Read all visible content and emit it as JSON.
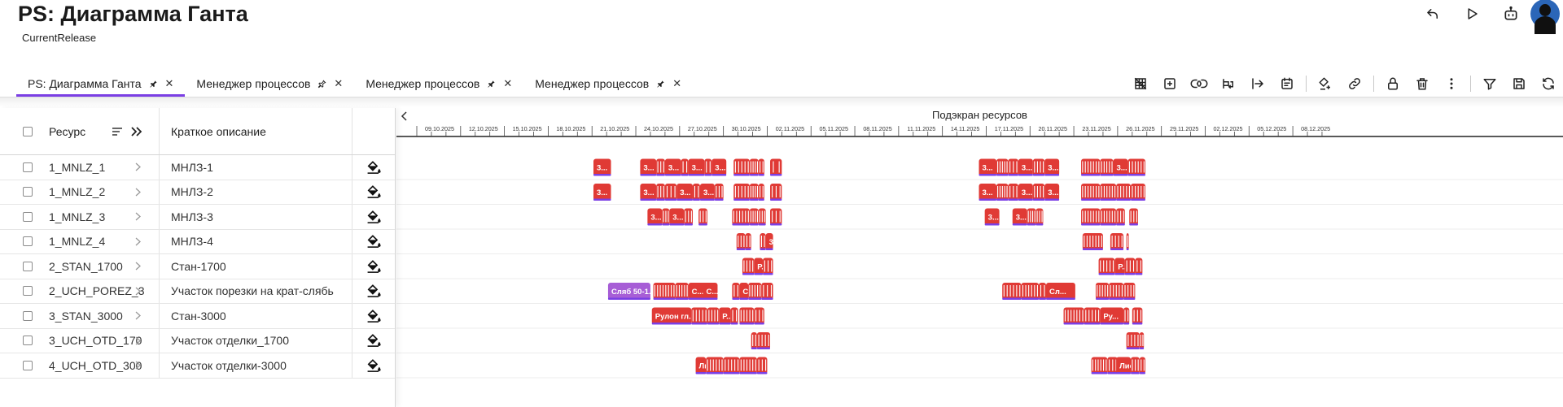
{
  "app": {
    "title": "PS: Диаграмма Ганта",
    "subtitle": "CurrentRelease"
  },
  "top_actions": [
    {
      "name": "undo-icon"
    },
    {
      "name": "play-icon"
    },
    {
      "name": "robot-icon"
    },
    {
      "name": "user-avatar-icon"
    }
  ],
  "tabs": [
    {
      "label": "PS: Диаграмма Ганта",
      "active": true,
      "pin": "pin-filled-icon"
    },
    {
      "label": "Менеджер процессов",
      "active": false,
      "pin": "pin-outline-icon"
    },
    {
      "label": "Менеджер процессов",
      "active": false,
      "pin": "pin-filled-icon"
    },
    {
      "label": "Менеджер процессов",
      "active": false,
      "pin": "pin-filled-icon"
    }
  ],
  "toolbar": [
    "grid-off-icon",
    "add-box-icon",
    "link-code-icon",
    "wrap-text-icon",
    "arrow-to-right-icon",
    "calendar-list-icon",
    "|",
    "fill-plus-icon",
    "link-icon",
    "|",
    "lock-icon",
    "trash-icon",
    "more-vertical-icon",
    "|",
    "filter-icon",
    "save-icon",
    "refresh-icon"
  ],
  "grid": {
    "headers": {
      "resource": "Ресурс",
      "description": "Краткое описание"
    },
    "rows": [
      {
        "code": "1_MNLZ_1",
        "desc": "МНЛЗ-1"
      },
      {
        "code": "1_MNLZ_2",
        "desc": "МНЛЗ-2"
      },
      {
        "code": "1_MNLZ_3",
        "desc": "МНЛЗ-3"
      },
      {
        "code": "1_MNLZ_4",
        "desc": "МНЛЗ-4"
      },
      {
        "code": "2_STAN_1700",
        "desc": "Стан-1700"
      },
      {
        "code": "2_UCH_POREZ_3",
        "desc": "Участок порезки на крат-слябь"
      },
      {
        "code": "3_STAN_3000",
        "desc": "Стан-3000"
      },
      {
        "code": "3_UCH_OTD_170",
        "desc": "Участок отделки_1700"
      },
      {
        "code": "4_UCH_OTD_300",
        "desc": "Участок отделки-3000"
      }
    ]
  },
  "gantt": {
    "title": "Подэкран ресурсов",
    "start_date": "09.10.2025",
    "days_visible": 62,
    "dates": [
      "09.10.2025",
      "12.10.2025",
      "15.10.2025",
      "18.10.2025",
      "21.10.2025",
      "24.10.2025",
      "27.10.2025",
      "30.10.2025",
      "02.11.2025",
      "05.11.2025",
      "08.11.2025",
      "11.11.2025",
      "14.11.2025",
      "17.11.2025",
      "20.11.2025",
      "23.11.2025",
      "26.11.2025",
      "29.11.2025",
      "02.12.2025",
      "05.12.2025",
      "08.12.2025"
    ],
    "colors": {
      "task": "#e03a35",
      "task_border": "#7b3fe4",
      "special": "#a75ed6",
      "divider": "#ececec"
    },
    "rows": [
      {
        "bars": [
          {
            "start": 12.1,
            "dur": 1.2,
            "label": "3..."
          },
          {
            "start": 15.3,
            "dur": 1.1,
            "label": "3..."
          },
          {
            "start": 16.4,
            "dur": 0.6,
            "pack": 3
          },
          {
            "start": 17.0,
            "dur": 1.1,
            "label": "3..."
          },
          {
            "start": 18.1,
            "dur": 0.5,
            "pack": 2
          },
          {
            "start": 18.6,
            "dur": 1.1,
            "label": "3..."
          },
          {
            "start": 19.7,
            "dur": 0.5,
            "pack": 2
          },
          {
            "start": 20.2,
            "dur": 1.0,
            "label": "3..."
          },
          {
            "start": 21.7,
            "dur": 1.1,
            "pack": 5
          },
          {
            "start": 22.8,
            "dur": 0.6,
            "pack": 4
          },
          {
            "start": 23.4,
            "dur": 0.4,
            "pack": 2
          },
          {
            "start": 24.2,
            "dur": 0.8,
            "pack": 2
          },
          {
            "start": 38.5,
            "dur": 1.2,
            "label": "3..."
          },
          {
            "start": 39.7,
            "dur": 0.8,
            "pack": 5
          },
          {
            "start": 40.5,
            "dur": 0.7,
            "pack": 3
          },
          {
            "start": 41.2,
            "dur": 1.0,
            "label": "3..."
          },
          {
            "start": 42.2,
            "dur": 0.8,
            "pack": 4
          },
          {
            "start": 43.0,
            "dur": 1.0,
            "label": "3..."
          },
          {
            "start": 45.5,
            "dur": 1.3,
            "pack": 7
          },
          {
            "start": 46.8,
            "dur": 0.9,
            "pack": 5
          },
          {
            "start": 47.7,
            "dur": 1.0,
            "label": "3..."
          },
          {
            "start": 48.7,
            "dur": 1.2,
            "pack": 6
          }
        ]
      },
      {
        "bars": [
          {
            "start": 12.1,
            "dur": 1.2,
            "label": "3..."
          },
          {
            "start": 15.3,
            "dur": 1.1,
            "label": "3..."
          },
          {
            "start": 16.4,
            "dur": 0.6,
            "pack": 3
          },
          {
            "start": 17.0,
            "dur": 0.8,
            "pack": 3
          },
          {
            "start": 17.8,
            "dur": 1.1,
            "label": "3..."
          },
          {
            "start": 18.9,
            "dur": 0.5,
            "pack": 2
          },
          {
            "start": 19.4,
            "dur": 1.0,
            "label": "3..."
          },
          {
            "start": 20.4,
            "dur": 0.6,
            "pack": 3
          },
          {
            "start": 21.7,
            "dur": 1.1,
            "pack": 5
          },
          {
            "start": 22.8,
            "dur": 0.6,
            "pack": 4
          },
          {
            "start": 23.4,
            "dur": 0.4,
            "pack": 2
          },
          {
            "start": 24.2,
            "dur": 0.8,
            "pack": 3
          },
          {
            "start": 38.5,
            "dur": 1.2,
            "label": "3..."
          },
          {
            "start": 39.7,
            "dur": 0.8,
            "pack": 5
          },
          {
            "start": 40.5,
            "dur": 0.7,
            "pack": 3
          },
          {
            "start": 41.2,
            "dur": 1.0,
            "label": "3..."
          },
          {
            "start": 42.2,
            "dur": 0.8,
            "pack": 4
          },
          {
            "start": 43.0,
            "dur": 1.0,
            "label": "3..."
          },
          {
            "start": 45.5,
            "dur": 1.3,
            "pack": 7
          },
          {
            "start": 46.8,
            "dur": 1.1,
            "pack": 6
          },
          {
            "start": 47.9,
            "dur": 1.0,
            "pack": 5
          },
          {
            "start": 48.9,
            "dur": 1.0,
            "pack": 5
          }
        ]
      },
      {
        "bars": [
          {
            "start": 15.8,
            "dur": 1.0,
            "label": "3..."
          },
          {
            "start": 16.8,
            "dur": 0.5,
            "pack": 3
          },
          {
            "start": 17.3,
            "dur": 1.0,
            "label": "3..."
          },
          {
            "start": 18.3,
            "dur": 0.6,
            "pack": 3
          },
          {
            "start": 19.3,
            "dur": 0.6,
            "pack": 3
          },
          {
            "start": 21.6,
            "dur": 1.2,
            "pack": 6
          },
          {
            "start": 22.8,
            "dur": 0.6,
            "pack": 4
          },
          {
            "start": 23.4,
            "dur": 0.5,
            "pack": 3
          },
          {
            "start": 24.2,
            "dur": 0.8,
            "pack": 3
          },
          {
            "start": 38.9,
            "dur": 1.0,
            "label": "3..."
          },
          {
            "start": 40.8,
            "dur": 1.0,
            "label": "3..."
          },
          {
            "start": 41.8,
            "dur": 0.6,
            "pack": 4
          },
          {
            "start": 42.4,
            "dur": 0.5,
            "pack": 3
          },
          {
            "start": 45.5,
            "dur": 1.3,
            "pack": 7
          },
          {
            "start": 46.8,
            "dur": 1.1,
            "pack": 6
          },
          {
            "start": 47.9,
            "dur": 0.6,
            "pack": 3
          },
          {
            "start": 48.8,
            "dur": 0.6,
            "pack": 3
          }
        ]
      },
      {
        "bars": [
          {
            "start": 21.9,
            "dur": 0.6,
            "pack": 3
          },
          {
            "start": 22.5,
            "dur": 0.4,
            "pack": 2
          },
          {
            "start": 23.5,
            "dur": 0.4,
            "pack": 2
          },
          {
            "start": 23.9,
            "dur": 0.5,
            "label": "3..."
          },
          {
            "start": 45.6,
            "dur": 1.4,
            "pack": 7
          },
          {
            "start": 47.5,
            "dur": 0.9,
            "pack": 4
          },
          {
            "start": 48.6,
            "dur": 0.1,
            "pack": 1
          }
        ]
      },
      {
        "bars": [
          {
            "start": 22.3,
            "dur": 0.8,
            "pack": 4
          },
          {
            "start": 23.1,
            "dur": 0.6,
            "label": "Р..."
          },
          {
            "start": 23.7,
            "dur": 0.7,
            "pack": 3
          },
          {
            "start": 46.7,
            "dur": 1.1,
            "pack": 5
          },
          {
            "start": 47.8,
            "dur": 0.7,
            "label": "Р..."
          },
          {
            "start": 48.5,
            "dur": 0.7,
            "pack": 3
          },
          {
            "start": 49.2,
            "dur": 0.5,
            "pack": 2
          }
        ]
      },
      {
        "bars": [
          {
            "start": 13.1,
            "dur": 2.9,
            "label": "Сляб 50-1...",
            "special": true
          },
          {
            "start": 16.2,
            "dur": 1.5,
            "pack": 8
          },
          {
            "start": 17.7,
            "dur": 0.9,
            "pack": 5
          },
          {
            "start": 18.6,
            "dur": 1.4,
            "label": "С..."
          },
          {
            "start": 19.6,
            "dur": 1.0,
            "label": "С..."
          },
          {
            "start": 21.6,
            "dur": 0.5,
            "pack": 2
          },
          {
            "start": 22.1,
            "dur": 0.6,
            "label": "С..."
          },
          {
            "start": 22.7,
            "dur": 0.9,
            "pack": 5
          },
          {
            "start": 23.6,
            "dur": 0.8,
            "pack": 3
          },
          {
            "start": 40.1,
            "dur": 1.3,
            "pack": 6
          },
          {
            "start": 41.4,
            "dur": 1.2,
            "pack": 6
          },
          {
            "start": 42.6,
            "dur": 0.5,
            "pack": 2
          },
          {
            "start": 43.1,
            "dur": 2.0,
            "label": "Сл..."
          },
          {
            "start": 46.5,
            "dur": 0.9,
            "pack": 5
          },
          {
            "start": 47.4,
            "dur": 1.0,
            "pack": 5
          },
          {
            "start": 48.4,
            "dur": 0.8,
            "pack": 4
          }
        ]
      },
      {
        "bars": [
          {
            "start": 16.1,
            "dur": 2.7,
            "label": "Рулон гл..."
          },
          {
            "start": 18.8,
            "dur": 1.1,
            "pack": 5
          },
          {
            "start": 19.9,
            "dur": 0.8,
            "pack": 4
          },
          {
            "start": 20.7,
            "dur": 0.8,
            "label": "Р..."
          },
          {
            "start": 21.5,
            "dur": 0.5,
            "pack": 2
          },
          {
            "start": 22.1,
            "dur": 1.0,
            "pack": 5
          },
          {
            "start": 23.1,
            "dur": 0.7,
            "pack": 3
          },
          {
            "start": 44.3,
            "dur": 1.4,
            "pack": 7
          },
          {
            "start": 45.7,
            "dur": 1.1,
            "pack": 5
          },
          {
            "start": 46.8,
            "dur": 1.6,
            "label": "Ру..."
          },
          {
            "start": 48.4,
            "dur": 0.4,
            "pack": 2
          },
          {
            "start": 49.0,
            "dur": 0.7,
            "pack": 3
          }
        ]
      },
      {
        "bars": [
          {
            "start": 22.9,
            "dur": 0.4,
            "pack": 2
          },
          {
            "start": 23.3,
            "dur": 0.9,
            "pack": 4
          },
          {
            "start": 48.6,
            "dur": 0.9,
            "pack": 4
          },
          {
            "start": 49.5,
            "dur": 0.3,
            "pack": 2
          }
        ]
      },
      {
        "bars": [
          {
            "start": 19.1,
            "dur": 0.7,
            "label": "Лис..."
          },
          {
            "start": 19.8,
            "dur": 1.2,
            "pack": 6
          },
          {
            "start": 21.0,
            "dur": 1.1,
            "pack": 5
          },
          {
            "start": 22.1,
            "dur": 1.2,
            "pack": 6
          },
          {
            "start": 23.3,
            "dur": 0.7,
            "pack": 3
          },
          {
            "start": 46.2,
            "dur": 1.1,
            "pack": 6
          },
          {
            "start": 47.3,
            "dur": 0.7,
            "pack": 3
          },
          {
            "start": 47.9,
            "dur": 1.0,
            "label": "Лис..."
          },
          {
            "start": 48.9,
            "dur": 0.6,
            "pack": 3
          },
          {
            "start": 49.5,
            "dur": 0.4,
            "pack": 2
          }
        ]
      }
    ]
  }
}
